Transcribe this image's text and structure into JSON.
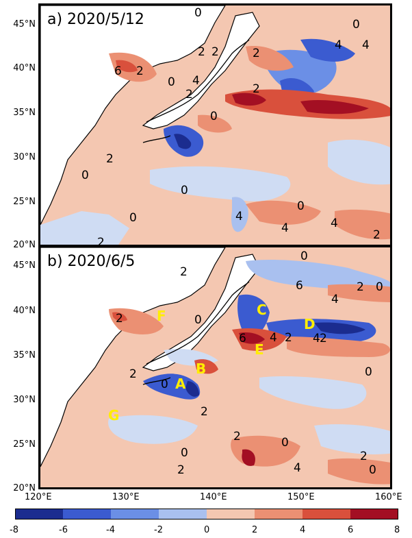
{
  "panels": [
    {
      "title": "a) 2020/5/12"
    },
    {
      "title": "b) 2020/6/5"
    }
  ],
  "lat_ticks": [
    "45°N",
    "40°N",
    "35°N",
    "30°N",
    "25°N",
    "20°N"
  ],
  "lon_ticks": [
    "120°E",
    "130°E",
    "140°E",
    "150°E",
    "160°E"
  ],
  "colorbar": {
    "ticks": [
      "-8",
      "-6",
      "-4",
      "-2",
      "0",
      "2",
      "4",
      "6",
      "8"
    ],
    "colors": [
      "#1b2c8f",
      "#3b5bd0",
      "#6b8fe6",
      "#a9c0ef",
      "#cfdcf3",
      "#f4c7b1",
      "#eb9073",
      "#d9503c",
      "#a30f23"
    ]
  },
  "region_labels": [
    "A",
    "B",
    "C",
    "D",
    "E",
    "F",
    "G"
  ],
  "contour_labels_a": [
    "0",
    "0",
    "2",
    "2",
    "4",
    "4",
    "6",
    "2",
    "0",
    "2",
    "4",
    "2",
    "0",
    "0",
    "2",
    "0",
    "4",
    "0",
    "2",
    "4",
    "2",
    "0",
    "4",
    "2"
  ],
  "contour_labels_b": [
    "2",
    "0",
    "2",
    "0",
    "6",
    "4",
    "2",
    "4",
    "2",
    "0",
    "2",
    "0",
    "4",
    "2",
    "0",
    "6",
    "2",
    "0",
    "2",
    "0",
    "2",
    "4",
    "2",
    "0"
  ]
}
